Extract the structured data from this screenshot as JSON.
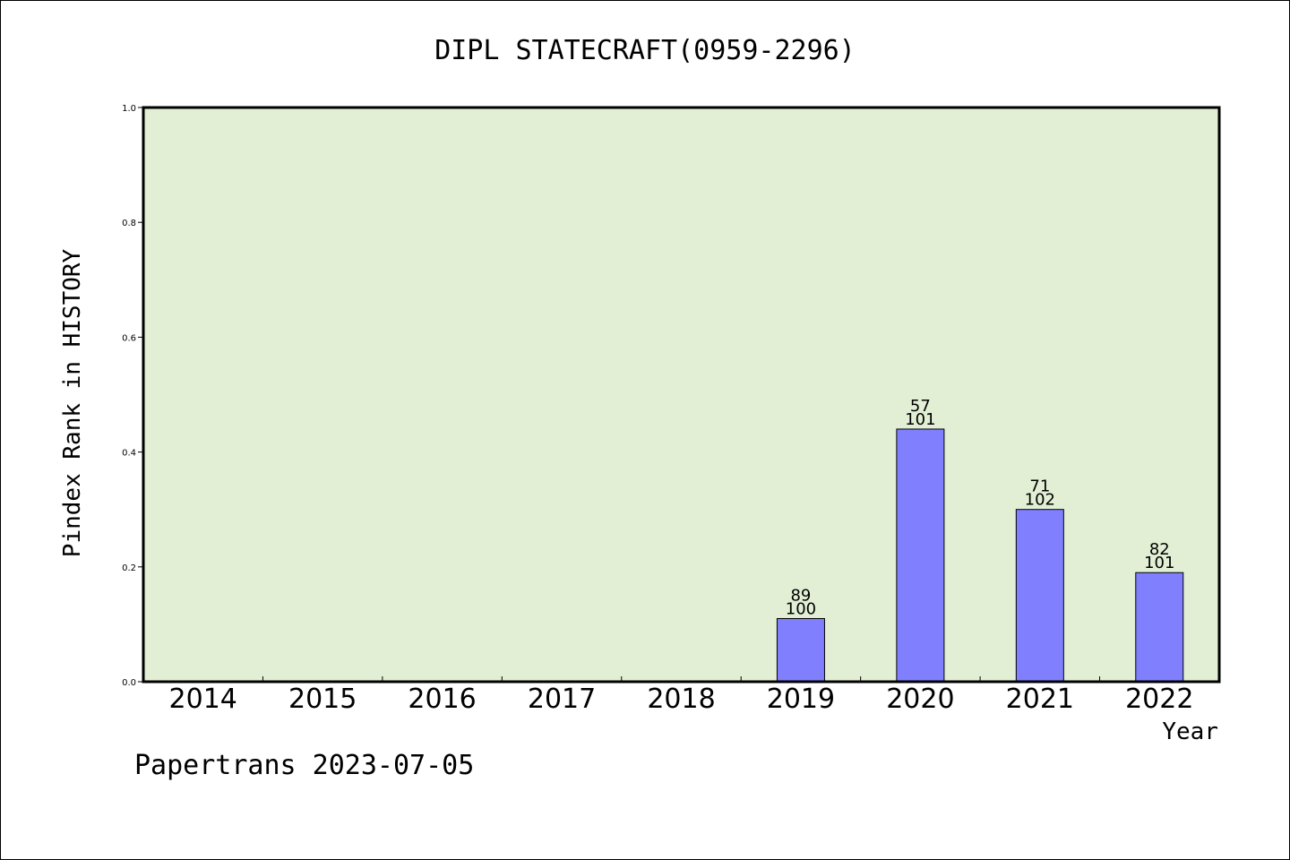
{
  "chart_data": {
    "type": "bar",
    "title": "DIPL STATECRAFT(0959-2296)",
    "xlabel": "Year",
    "ylabel": "Pindex Rank in HISTORY",
    "categories": [
      "2014",
      "2015",
      "2016",
      "2017",
      "2018",
      "2019",
      "2020",
      "2021",
      "2022"
    ],
    "values": [
      null,
      null,
      null,
      null,
      null,
      0.11,
      0.44,
      0.3,
      0.19
    ],
    "rank_labels": [
      "",
      "",
      "",
      "",
      "",
      "89",
      "57",
      "71",
      "82"
    ],
    "total_labels": [
      "",
      "",
      "",
      "",
      "",
      "100",
      "101",
      "102",
      "101"
    ],
    "ylim": [
      0,
      1.0
    ],
    "yticks": [
      "0.0",
      "0.2",
      "0.4",
      "0.6",
      "0.8",
      "1.0"
    ],
    "grid": false,
    "colors": {
      "plot_background": "#e2efd5",
      "bar": "#8080ff"
    }
  },
  "footer": "Papertrans 2023-07-05"
}
